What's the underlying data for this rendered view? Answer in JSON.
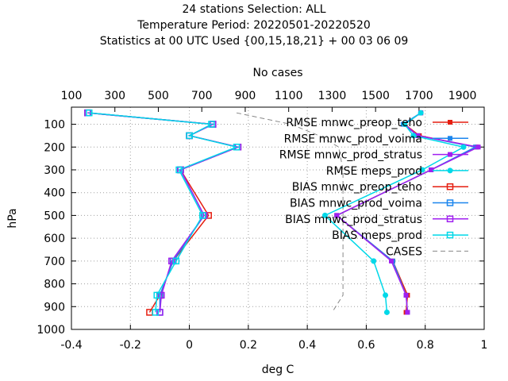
{
  "chart_data": {
    "type": "line",
    "title": [
      "24 stations Selection: ALL",
      "Temperature  Period: 20220501-20220520",
      "Statistics at 00 UTC  Used {00,15,18,21} + 00 03 06 09"
    ],
    "xlabel": "deg C",
    "ylabel": "hPa",
    "x2label": "No cases",
    "xlim": [
      -0.4,
      1.0
    ],
    "ylim": [
      1000,
      25
    ],
    "x2lim": [
      100,
      2000
    ],
    "xticks": [
      "-0.4",
      "-0.2",
      "0",
      "0.2",
      "0.4",
      "0.6",
      "0.8",
      "1"
    ],
    "yticks": [
      "100",
      "200",
      "300",
      "400",
      "500",
      "600",
      "700",
      "800",
      "900",
      "1000"
    ],
    "x2ticks": [
      "100",
      "300",
      "500",
      "700",
      "900",
      "1100",
      "1300",
      "1500",
      "1700",
      "1900"
    ],
    "grid": true,
    "legend_position": "top-right",
    "pressure_levels": [
      50,
      100,
      150,
      200,
      300,
      500,
      700,
      850,
      925
    ],
    "series": [
      {
        "name": "RMSE mnwc_preop_teho",
        "color": "#e51e10",
        "marker": "filled-square",
        "dash": "solid",
        "values": [
          0.785,
          0.73,
          0.78,
          0.975,
          0.82,
          0.5,
          0.69,
          0.74,
          0.735
        ]
      },
      {
        "name": "RMSE mnwc_prod_voima",
        "color": "#1c86ee",
        "marker": "filled-square",
        "dash": "solid",
        "values": [
          0.785,
          0.725,
          0.775,
          0.97,
          0.82,
          0.5,
          0.69,
          0.735,
          0.74
        ]
      },
      {
        "name": "RMSE mnwc_prod_stratus",
        "color": "#a020f0",
        "marker": "filled-square",
        "dash": "solid",
        "values": [
          0.785,
          0.73,
          0.775,
          0.98,
          0.82,
          0.5,
          0.685,
          0.735,
          0.74
        ]
      },
      {
        "name": "RMSE meps_prod",
        "color": "#00d8e8",
        "marker": "filled-circle",
        "dash": "solid",
        "values": [
          0.785,
          0.73,
          0.76,
          0.93,
          0.79,
          0.46,
          0.625,
          0.665,
          0.67
        ]
      },
      {
        "name": "BIAS mnwc_preop_teho",
        "color": "#e51e10",
        "marker": "open-square",
        "dash": "solid",
        "values": [
          -0.345,
          0.08,
          0.0,
          0.165,
          -0.03,
          0.065,
          -0.055,
          -0.1,
          -0.135
        ]
      },
      {
        "name": "BIAS mnwc_prod_voima",
        "color": "#1c86ee",
        "marker": "open-square",
        "dash": "solid",
        "values": [
          -0.345,
          0.08,
          0.0,
          0.165,
          -0.03,
          0.05,
          -0.055,
          -0.1,
          -0.1
        ]
      },
      {
        "name": "BIAS mnwc_prod_stratus",
        "color": "#a020f0",
        "marker": "open-square",
        "dash": "solid",
        "values": [
          -0.345,
          0.08,
          0.0,
          0.165,
          -0.03,
          0.05,
          -0.06,
          -0.095,
          -0.1
        ]
      },
      {
        "name": "BIAS meps_prod",
        "color": "#00d8e8",
        "marker": "open-square",
        "dash": "solid",
        "values": [
          -0.34,
          0.075,
          0.0,
          0.16,
          -0.035,
          0.045,
          -0.045,
          -0.11,
          -0.115
        ]
      },
      {
        "name": "CASES",
        "color": "#888888",
        "marker": "none",
        "dash": "dashed",
        "axis": "x2",
        "values": [
          860,
          1110,
          1240,
          1330,
          1350,
          1350,
          1350,
          1350,
          1300
        ]
      }
    ]
  }
}
